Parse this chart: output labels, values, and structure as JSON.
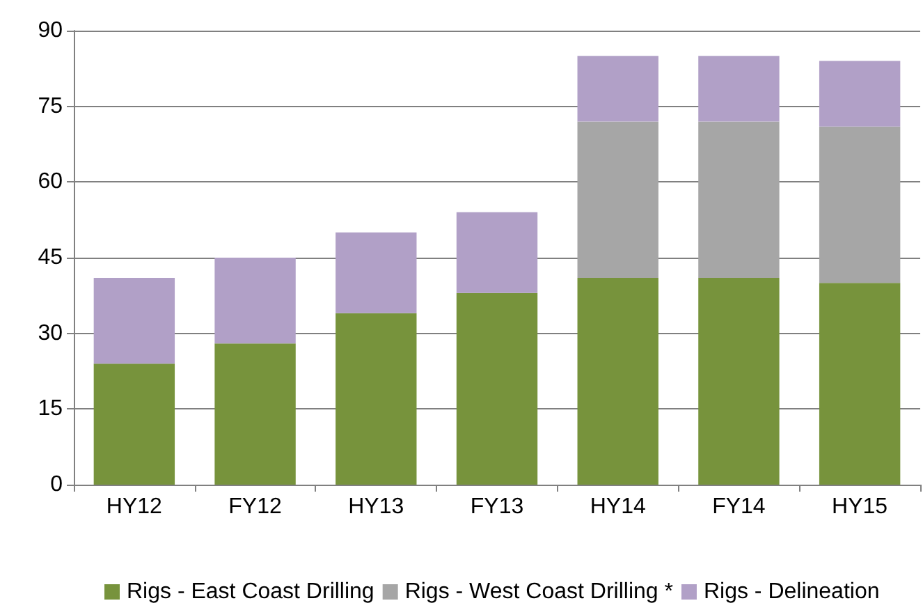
{
  "chart_data": {
    "type": "bar",
    "stacked": true,
    "categories": [
      "HY12",
      "FY12",
      "HY13",
      "FY13",
      "HY14",
      "FY14",
      "HY15"
    ],
    "series": [
      {
        "name": "Rigs - East Coast Drilling",
        "color": "#77933c",
        "values": [
          24,
          28,
          34,
          38,
          41,
          41,
          40
        ]
      },
      {
        "name": "Rigs - West Coast Drilling *",
        "color": "#a6a6a6",
        "values": [
          0,
          0,
          0,
          0,
          31,
          31,
          31
        ]
      },
      {
        "name": "Rigs - Delineation",
        "color": "#b1a0c7",
        "values": [
          17,
          17,
          16,
          16,
          13,
          13,
          13
        ]
      }
    ],
    "ylim": [
      0,
      90
    ],
    "yticks": [
      0,
      15,
      30,
      45,
      60,
      75,
      90
    ],
    "grid": "y",
    "legend": "bottom"
  }
}
